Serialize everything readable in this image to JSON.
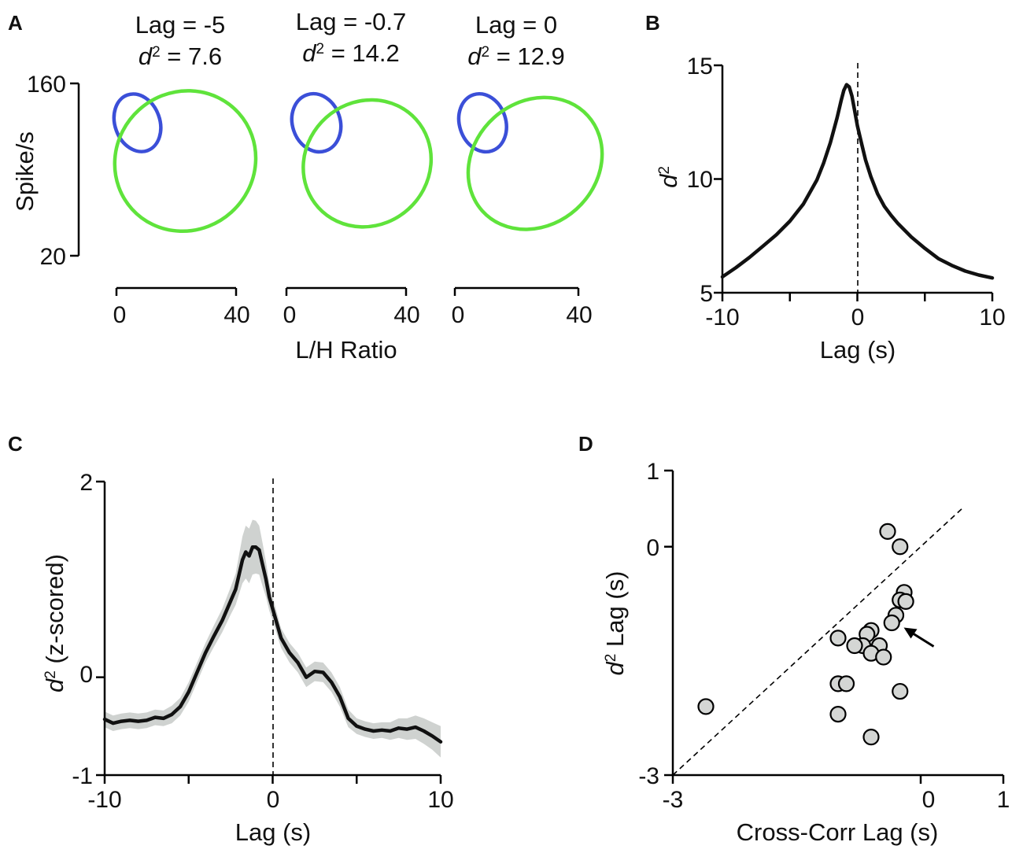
{
  "colors": {
    "blue": "#3b4fd8",
    "green": "#5fe33b",
    "curve": "#111111",
    "band": "#cfd2d0",
    "marker": "#d4d6d4"
  },
  "panelA": {
    "label": "A",
    "ylabel": "Spike/s",
    "xlabel": "L/H Ratio",
    "yticks": [
      "160",
      "20"
    ],
    "xticks": [
      "0",
      "40"
    ],
    "insets": [
      {
        "lag_text": "Lag = -5",
        "d2_sym": "d",
        "d2_sup": "2",
        "d2_val": " = 7.6"
      },
      {
        "lag_text": "Lag = -0.7",
        "d2_sym": "d",
        "d2_sup": "2",
        "d2_val": " = 14.2"
      },
      {
        "lag_text": "Lag = 0",
        "d2_sym": "d",
        "d2_sup": "2",
        "d2_val": " = 12.9"
      }
    ],
    "ellipses": [
      {
        "blue": {
          "cx": 7,
          "cy": 128,
          "rx": 7.5,
          "ry": 24,
          "angle": 20
        },
        "green": {
          "cx": 23,
          "cy": 97,
          "rx": 24,
          "ry": 56,
          "angle": 42
        }
      },
      {
        "blue": {
          "cx": 10,
          "cy": 128,
          "rx": 8,
          "ry": 24,
          "angle": 18
        },
        "green": {
          "cx": 27,
          "cy": 95,
          "rx": 22,
          "ry": 50,
          "angle": 42
        }
      },
      {
        "blue": {
          "cx": 9,
          "cy": 128,
          "rx": 7.5,
          "ry": 24,
          "angle": 18
        },
        "green": {
          "cx": 26,
          "cy": 95,
          "rx": 23,
          "ry": 50,
          "angle": 42
        }
      }
    ]
  },
  "chart_data": [
    {
      "panel": "B",
      "type": "line",
      "xlabel": "Lag (s)",
      "ylabel_sym": "d",
      "ylabel_sup": "2",
      "xlim": [
        -10,
        10
      ],
      "ylim": [
        5,
        15
      ],
      "xtick_labels": [
        "-10",
        "0",
        "10"
      ],
      "ytick_labels": [
        "15",
        "10",
        "5"
      ],
      "x": [
        -10,
        -9,
        -8,
        -7,
        -6,
        -5,
        -4,
        -3,
        -2.5,
        -2,
        -1.5,
        -1.2,
        -1,
        -0.8,
        -0.6,
        -0.4,
        -0.2,
        0,
        0.3,
        0.6,
        1,
        1.5,
        2,
        2.5,
        3,
        4,
        5,
        6,
        7,
        8,
        9,
        10
      ],
      "y": [
        5.7,
        6.1,
        6.55,
        7.05,
        7.55,
        8.15,
        8.9,
        9.95,
        10.7,
        11.6,
        12.7,
        13.45,
        13.9,
        14.15,
        14.05,
        13.65,
        13.0,
        12.35,
        11.6,
        10.85,
        10.1,
        9.35,
        8.8,
        8.4,
        8.05,
        7.45,
        6.95,
        6.5,
        6.2,
        5.95,
        5.78,
        5.65
      ]
    },
    {
      "panel": "C",
      "type": "line",
      "xlabel": "Lag (s)",
      "ylabel_sym": "d",
      "ylabel_sup": "2",
      "ylabel_rest": " (z-scored)",
      "xlim": [
        -10,
        10
      ],
      "ylim": [
        -1,
        2
      ],
      "xtick_labels": [
        "-10",
        "0",
        "10"
      ],
      "ytick_labels": [
        "2",
        "0",
        "-1"
      ],
      "x": [
        -10,
        -9.5,
        -9,
        -8.5,
        -8,
        -7.5,
        -7,
        -6.5,
        -6,
        -5.5,
        -5,
        -4.5,
        -4,
        -3.5,
        -3,
        -2.5,
        -2.2,
        -2,
        -1.8,
        -1.6,
        -1.4,
        -1.2,
        -1,
        -0.8,
        -0.6,
        -0.4,
        -0.2,
        0,
        0.5,
        1,
        1.5,
        2,
        2.5,
        3,
        3.5,
        4,
        4.5,
        5,
        5.5,
        6,
        6.5,
        7,
        7.5,
        8,
        8.5,
        9,
        9.5,
        10
      ],
      "y": [
        -0.43,
        -0.47,
        -0.45,
        -0.44,
        -0.45,
        -0.44,
        -0.41,
        -0.42,
        -0.38,
        -0.3,
        -0.15,
        0.05,
        0.25,
        0.42,
        0.58,
        0.78,
        0.9,
        1.05,
        1.2,
        1.28,
        1.24,
        1.33,
        1.33,
        1.3,
        1.15,
        1.0,
        0.82,
        0.7,
        0.4,
        0.25,
        0.15,
        0.0,
        0.06,
        0.05,
        -0.05,
        -0.2,
        -0.42,
        -0.5,
        -0.53,
        -0.55,
        -0.54,
        -0.55,
        -0.52,
        -0.53,
        -0.51,
        -0.55,
        -0.6,
        -0.66
      ],
      "band_halfwidth": [
        0.08,
        0.08,
        0.08,
        0.08,
        0.08,
        0.08,
        0.08,
        0.08,
        0.09,
        0.09,
        0.1,
        0.1,
        0.1,
        0.11,
        0.12,
        0.14,
        0.16,
        0.2,
        0.24,
        0.27,
        0.28,
        0.28,
        0.27,
        0.25,
        0.22,
        0.18,
        0.14,
        0.12,
        0.1,
        0.1,
        0.1,
        0.1,
        0.1,
        0.1,
        0.1,
        0.1,
        0.09,
        0.08,
        0.08,
        0.08,
        0.08,
        0.09,
        0.1,
        0.11,
        0.12,
        0.13,
        0.14,
        0.16
      ]
    },
    {
      "panel": "D",
      "type": "scatter",
      "xlabel": "Cross-Corr Lag (s)",
      "ylabel_sym": "d",
      "ylabel_sup": "2",
      "ylabel_rest": " Lag (s)",
      "xlim": [
        -3,
        1
      ],
      "ylim": [
        -3,
        1
      ],
      "xtick_labels": [
        "-3",
        "0",
        "1"
      ],
      "ytick_labels": [
        "1",
        "0",
        "-3"
      ],
      "identity_line": true,
      "arrow_target": [
        -0.3,
        -1.0
      ],
      "points": [
        [
          -0.4,
          0.2
        ],
        [
          -0.25,
          0.0
        ],
        [
          -0.2,
          -0.6
        ],
        [
          -0.25,
          -0.7
        ],
        [
          -0.18,
          -0.72
        ],
        [
          -0.3,
          -0.9
        ],
        [
          -0.35,
          -1.0
        ],
        [
          -0.6,
          -1.1
        ],
        [
          -0.65,
          -1.15
        ],
        [
          -1.0,
          -1.2
        ],
        [
          -0.5,
          -1.3
        ],
        [
          -0.7,
          -1.3
        ],
        [
          -0.8,
          -1.3
        ],
        [
          -0.6,
          -1.4
        ],
        [
          -0.45,
          -1.45
        ],
        [
          -1.0,
          -1.8
        ],
        [
          -0.9,
          -1.8
        ],
        [
          -0.25,
          -1.9
        ],
        [
          -2.6,
          -2.1
        ],
        [
          -1.0,
          -2.2
        ],
        [
          -0.6,
          -2.5
        ]
      ]
    }
  ]
}
